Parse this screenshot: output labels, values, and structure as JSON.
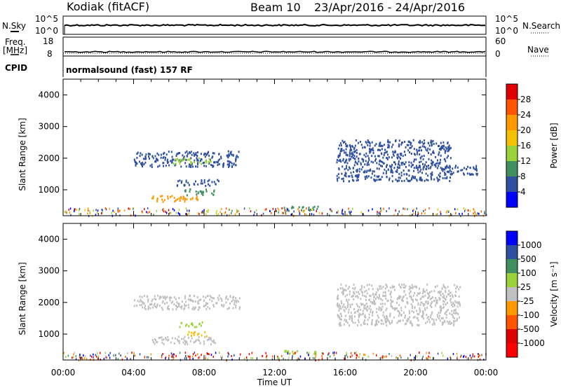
{
  "header": {
    "station": "Kodiak (fitACF)",
    "beam": "Beam 10",
    "dates": "23/Apr/2016 - 24/Apr/2016"
  },
  "summary_panels": {
    "nsky_label": "N.Sky",
    "nsearch_label": "N.Search",
    "nsky_ticks": [
      "10^5",
      "10^0"
    ],
    "nsearch_ticks": [
      "10^5",
      "10^0"
    ],
    "freq_label_line1": "Freq.",
    "freq_label_line2": "[MHz]",
    "freq_ticks": [
      "18",
      "8"
    ],
    "nave_label": "Nave",
    "nave_ticks": [
      "60",
      "0"
    ],
    "cpid_label": "CPID",
    "cpid_text": "normalsound (fast) 157 RF"
  },
  "chart_data": [
    {
      "type": "heatmap",
      "name": "power",
      "ylabel": "Slant Range [km]",
      "xlabel": "Time UT",
      "xlim": [
        0,
        24
      ],
      "ylim": [
        180,
        4500
      ],
      "yticks": [
        "1000",
        "2000",
        "3000",
        "4000"
      ],
      "xticks": [
        "00:00",
        "04:00",
        "08:00",
        "12:00",
        "16:00",
        "20:00",
        "00:00"
      ],
      "colorbar": {
        "label": "Power [dB]",
        "ticks": [
          "28",
          "24",
          "20",
          "16",
          "12",
          "8",
          "4"
        ],
        "colors": [
          "#e00000",
          "#ff5500",
          "#ff9900",
          "#f5c000",
          "#9bd23c",
          "#3f8f5f",
          "#2f50a0",
          "#0000ff"
        ]
      },
      "scatter_regions": [
        {
          "t": [
            4.0,
            10.0
          ],
          "r": [
            1750,
            2250
          ],
          "color": "#2f50a0"
        },
        {
          "t": [
            6.2,
            8.4
          ],
          "r": [
            1850,
            2050
          ],
          "color": "#9bd23c"
        },
        {
          "t": [
            6.4,
            8.8
          ],
          "r": [
            1150,
            1350
          ],
          "color": "#2f50a0"
        },
        {
          "t": [
            6.8,
            8.6
          ],
          "r": [
            850,
            1050
          ],
          "color": "#3f8f5f"
        },
        {
          "t": [
            5.0,
            7.8
          ],
          "r": [
            650,
            850
          ],
          "color": "#ff9900"
        },
        {
          "t": [
            15.5,
            22.0
          ],
          "r": [
            1300,
            2600
          ],
          "color": "#2f50a0"
        },
        {
          "t": [
            21.5,
            23.5
          ],
          "r": [
            1500,
            1800
          ],
          "color": "#2f50a0"
        },
        {
          "t": [
            12.5,
            14.5
          ],
          "r": [
            350,
            500
          ],
          "color": "#3f8f5f"
        }
      ]
    },
    {
      "type": "heatmap",
      "name": "velocity",
      "ylabel": "Slant Range [km]",
      "xlabel": "Time UT",
      "xlim": [
        0,
        24
      ],
      "ylim": [
        180,
        4500
      ],
      "yticks": [
        "1000",
        "2000",
        "3000",
        "4000"
      ],
      "xticks": [
        "00:00",
        "04:00",
        "08:00",
        "12:00",
        "16:00",
        "20:00",
        "00:00"
      ],
      "colorbar": {
        "label": "Velocity [m s⁻¹]",
        "ticks": [
          "1000",
          "500",
          "100",
          "25",
          "-25",
          "-100",
          "-500",
          "-1000"
        ],
        "colors": [
          "#0000ff",
          "#2f50a0",
          "#3f8f5f",
          "#9bd23c",
          "#c0c0c0",
          "#ff9900",
          "#ff5500",
          "#e00000",
          "#ff0000"
        ]
      },
      "scatter_regions": [
        {
          "t": [
            4.0,
            10.0
          ],
          "r": [
            1800,
            2250
          ],
          "color": "#c0c0c0"
        },
        {
          "t": [
            6.5,
            8.0
          ],
          "r": [
            1250,
            1400
          ],
          "color": "#9bd23c"
        },
        {
          "t": [
            5.0,
            8.6
          ],
          "r": [
            700,
            950
          ],
          "color": "#c0c0c0"
        },
        {
          "t": [
            7.0,
            8.2
          ],
          "r": [
            950,
            1100
          ],
          "color": "#f5c000"
        },
        {
          "t": [
            15.5,
            22.5
          ],
          "r": [
            1300,
            2600
          ],
          "color": "#c0c0c0"
        },
        {
          "t": [
            12.5,
            14.5
          ],
          "r": [
            400,
            500
          ],
          "color": "#9bd23c"
        }
      ]
    }
  ]
}
